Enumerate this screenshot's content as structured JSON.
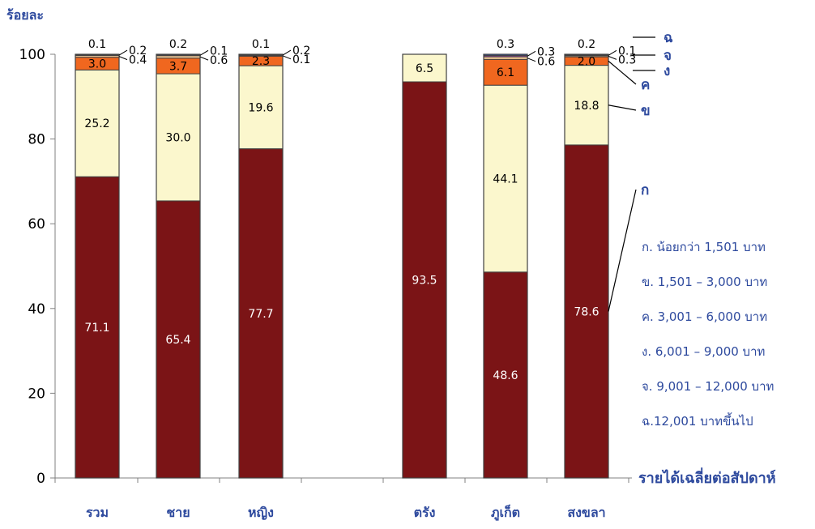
{
  "chart_data": {
    "type": "bar",
    "stacked": true,
    "ylabel": "ร้อยละ",
    "xlabel": "รายได้เฉลี่ยต่อสัปดาห์",
    "ylim": [
      0,
      100
    ],
    "yticks": [
      "0",
      "20",
      "40",
      "60",
      "80",
      "100"
    ],
    "categories": [
      "รวม",
      "ชาย",
      "หญิง",
      "ตรัง",
      "ภูเก็ต",
      "สงขลา"
    ],
    "gap_after_index": 2,
    "series": [
      {
        "name": "ก",
        "color": "#7b1416",
        "text_color": "#ffffff",
        "values": [
          71.1,
          65.4,
          77.7,
          93.5,
          48.6,
          78.6
        ]
      },
      {
        "name": "ข",
        "color": "#fbf7cd",
        "text_color": "#000000",
        "values": [
          25.2,
          30.0,
          19.6,
          6.5,
          44.1,
          18.8
        ]
      },
      {
        "name": "ค",
        "color": "#f0671f",
        "text_color": "#000000",
        "values": [
          3.0,
          3.7,
          2.3,
          0,
          6.1,
          2.0
        ]
      },
      {
        "name": "ง",
        "color": "#fbcf9b",
        "text_color": "#000000",
        "values": [
          0.4,
          0.6,
          0.1,
          0,
          0.6,
          0.3
        ]
      },
      {
        "name": "จ",
        "color": "#a0479e",
        "text_color": "#000000",
        "values": [
          0.2,
          0.1,
          0.2,
          0,
          0.3,
          0.1
        ]
      },
      {
        "name": "ฉ",
        "color": "#3a55a5",
        "text_color": "#000000",
        "values": [
          0.1,
          0.2,
          0.1,
          0,
          0.3,
          0.2
        ]
      }
    ],
    "data_labels": [
      {
        "bar": 0,
        "series": 0,
        "text": "71.1",
        "pos": "in"
      },
      {
        "bar": 0,
        "series": 1,
        "text": "25.2",
        "pos": "in"
      },
      {
        "bar": 0,
        "series": 2,
        "text": "3.0",
        "pos": "in"
      },
      {
        "bar": 0,
        "series": 3,
        "text": "0.4",
        "pos": "right"
      },
      {
        "bar": 0,
        "series": 4,
        "text": "0.2",
        "pos": "right"
      },
      {
        "bar": 0,
        "series": 5,
        "text": "0.1",
        "pos": "top"
      },
      {
        "bar": 1,
        "series": 0,
        "text": "65.4",
        "pos": "in"
      },
      {
        "bar": 1,
        "series": 1,
        "text": "30.0",
        "pos": "in"
      },
      {
        "bar": 1,
        "series": 2,
        "text": "3.7",
        "pos": "in"
      },
      {
        "bar": 1,
        "series": 3,
        "text": "0.6",
        "pos": "right"
      },
      {
        "bar": 1,
        "series": 4,
        "text": "0.1",
        "pos": "right"
      },
      {
        "bar": 1,
        "series": 5,
        "text": "0.2",
        "pos": "top"
      },
      {
        "bar": 2,
        "series": 0,
        "text": "77.7",
        "pos": "in"
      },
      {
        "bar": 2,
        "series": 1,
        "text": "19.6",
        "pos": "in"
      },
      {
        "bar": 2,
        "series": 2,
        "text": "2.3",
        "pos": "in"
      },
      {
        "bar": 2,
        "series": 3,
        "text": "0.1",
        "pos": "right"
      },
      {
        "bar": 2,
        "series": 4,
        "text": "0.2",
        "pos": "right"
      },
      {
        "bar": 2,
        "series": 5,
        "text": "0.1",
        "pos": "top"
      },
      {
        "bar": 3,
        "series": 0,
        "text": "93.5",
        "pos": "in"
      },
      {
        "bar": 3,
        "series": 1,
        "text": "6.5",
        "pos": "in"
      },
      {
        "bar": 4,
        "series": 0,
        "text": "48.6",
        "pos": "in"
      },
      {
        "bar": 4,
        "series": 1,
        "text": "44.1",
        "pos": "in"
      },
      {
        "bar": 4,
        "series": 2,
        "text": "6.1",
        "pos": "in"
      },
      {
        "bar": 4,
        "series": 3,
        "text": "0.6",
        "pos": "right"
      },
      {
        "bar": 4,
        "series": 4,
        "text": "0.3",
        "pos": "right"
      },
      {
        "bar": 4,
        "series": 5,
        "text": "0.3",
        "pos": "top"
      },
      {
        "bar": 5,
        "series": 0,
        "text": "78.6",
        "pos": "in"
      },
      {
        "bar": 5,
        "series": 1,
        "text": "18.8",
        "pos": "in"
      },
      {
        "bar": 5,
        "series": 2,
        "text": "2.0",
        "pos": "in"
      },
      {
        "bar": 5,
        "series": 3,
        "text": "0.3",
        "pos": "right"
      },
      {
        "bar": 5,
        "series": 4,
        "text": "0.1",
        "pos": "right"
      },
      {
        "bar": 5,
        "series": 5,
        "text": "0.2",
        "pos": "top"
      }
    ],
    "legend": [
      "ก. น้อยกว่า 1,501 บาท",
      "ข. 1,501 – 3,000 บาท",
      "ค. 3,001 – 6,000 บาท",
      "ง. 6,001 – 9,000 บาท",
      "จ. 9,001 – 12,000 บาท",
      "ฉ.12,001 บาทขึ้นไป"
    ],
    "legend_position": "right",
    "grid": false
  }
}
